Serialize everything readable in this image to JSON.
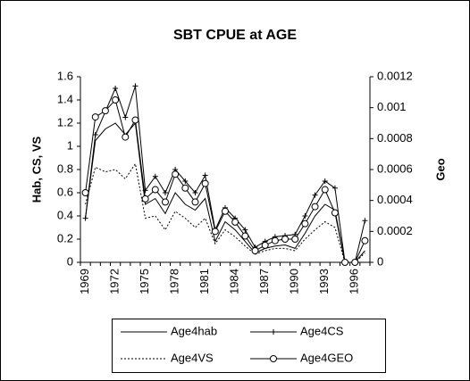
{
  "chart_data": {
    "type": "line",
    "title": "SBT CPUE at AGE",
    "y_label": "Hab, CS, VS",
    "y2_label": "Geo",
    "categories": [
      "1969",
      null,
      null,
      "1972",
      null,
      null,
      "1975",
      null,
      null,
      "1978",
      null,
      null,
      "1981",
      null,
      null,
      "1984",
      null,
      null,
      "1987",
      null,
      null,
      "1990",
      null,
      null,
      "1993",
      null,
      null,
      "1996",
      null
    ],
    "ylim": [
      0,
      1.6
    ],
    "yticks": [
      0,
      0.2,
      0.4,
      0.6,
      0.8,
      1,
      1.2,
      1.4,
      1.6
    ],
    "y2lim": [
      0,
      0.0012
    ],
    "y2ticks": [
      0,
      0.0002,
      0.0004,
      0.0006,
      0.0008,
      0.001,
      0.0012
    ],
    "legend": "bottom",
    "series": [
      {
        "name": "Age4hab",
        "color": "#000000",
        "dash": false,
        "marker": "none",
        "values": [
          0.38,
          1.05,
          1.15,
          1.2,
          1.1,
          1.2,
          0.5,
          0.55,
          0.42,
          0.6,
          0.5,
          0.45,
          0.55,
          0.18,
          0.35,
          0.28,
          0.18,
          0.08,
          0.12,
          0.14,
          0.15,
          0.12,
          0.25,
          0.4,
          0.5,
          0.45,
          0,
          0,
          0.1
        ]
      },
      {
        "name": "Age4CS",
        "color": "#000000",
        "dash": false,
        "marker": "plus",
        "values": [
          0.38,
          1.1,
          1.3,
          1.5,
          1.25,
          1.52,
          0.62,
          0.74,
          0.6,
          0.8,
          0.7,
          0.6,
          0.75,
          0.28,
          0.47,
          0.38,
          0.28,
          0.13,
          0.18,
          0.22,
          0.23,
          0.24,
          0.4,
          0.58,
          0.7,
          0.64,
          0,
          0,
          0.36
        ]
      },
      {
        "name": "Age4VS",
        "color": "#000000",
        "dash": true,
        "marker": "none",
        "values": [
          0.5,
          0.82,
          0.78,
          0.8,
          0.72,
          0.85,
          0.38,
          0.4,
          0.28,
          0.44,
          0.38,
          0.3,
          0.38,
          0.16,
          0.28,
          0.22,
          0.14,
          0.07,
          0.1,
          0.12,
          0.12,
          0.1,
          0.2,
          0.28,
          0.35,
          0.3,
          0,
          0,
          0.08
        ]
      },
      {
        "name": "Age4GEO",
        "color": "#000000",
        "dash": false,
        "marker": "circle",
        "axis": "y2",
        "values": [
          0.00045,
          0.00094,
          0.00098,
          0.00105,
          0.00081,
          0.00092,
          0.00041,
          0.00047,
          0.00039,
          0.00057,
          0.00048,
          0.00039,
          0.00051,
          0.0002,
          0.00033,
          0.00026,
          0.00017,
          7.5e-05,
          0.00011,
          0.00014,
          0.00015,
          0.00015,
          0.00025,
          0.00036,
          0.00047,
          0.00032,
          0,
          0,
          0.00014
        ]
      }
    ]
  }
}
